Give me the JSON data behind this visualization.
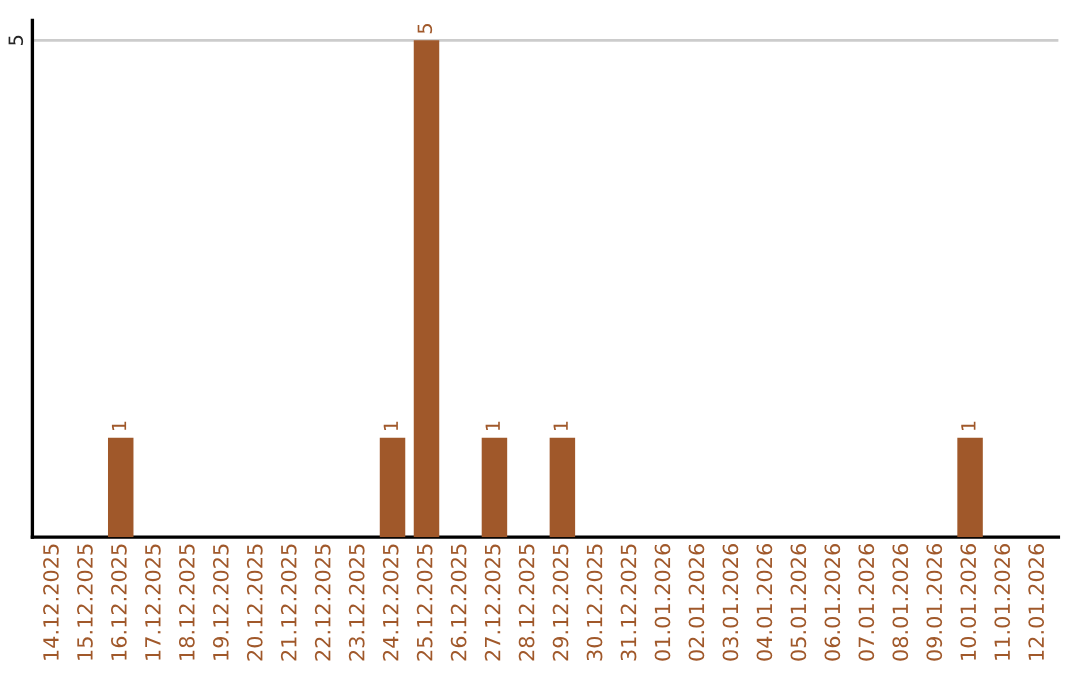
{
  "chart_data": {
    "type": "bar",
    "categories": [
      "14.12.2025",
      "15.12.2025",
      "16.12.2025",
      "17.12.2025",
      "18.12.2025",
      "19.12.2025",
      "20.12.2025",
      "21.12.2025",
      "22.12.2025",
      "23.12.2025",
      "24.12.2025",
      "25.12.2025",
      "26.12.2025",
      "27.12.2025",
      "28.12.2025",
      "29.12.2025",
      "30.12.2025",
      "31.12.2025",
      "01.01.2026",
      "02.01.2026",
      "03.01.2026",
      "04.01.2026",
      "05.01.2026",
      "06.01.2026",
      "07.01.2026",
      "08.01.2026",
      "09.01.2026",
      "10.01.2026",
      "11.01.2026",
      "12.01.2026"
    ],
    "values": [
      0,
      0,
      1,
      0,
      0,
      0,
      0,
      0,
      0,
      0,
      1,
      5,
      0,
      1,
      0,
      1,
      0,
      0,
      0,
      0,
      0,
      0,
      0,
      0,
      0,
      0,
      0,
      1,
      0,
      0
    ],
    "color": "#a0582a",
    "value_labels": [
      null,
      null,
      "1",
      null,
      null,
      null,
      null,
      null,
      null,
      null,
      "1",
      "5",
      null,
      "1",
      null,
      "1",
      null,
      null,
      null,
      null,
      null,
      null,
      null,
      null,
      null,
      null,
      null,
      "1",
      null,
      null
    ],
    "ylim": [
      0,
      5.2
    ],
    "yticks": [
      5
    ],
    "grid": "y"
  }
}
